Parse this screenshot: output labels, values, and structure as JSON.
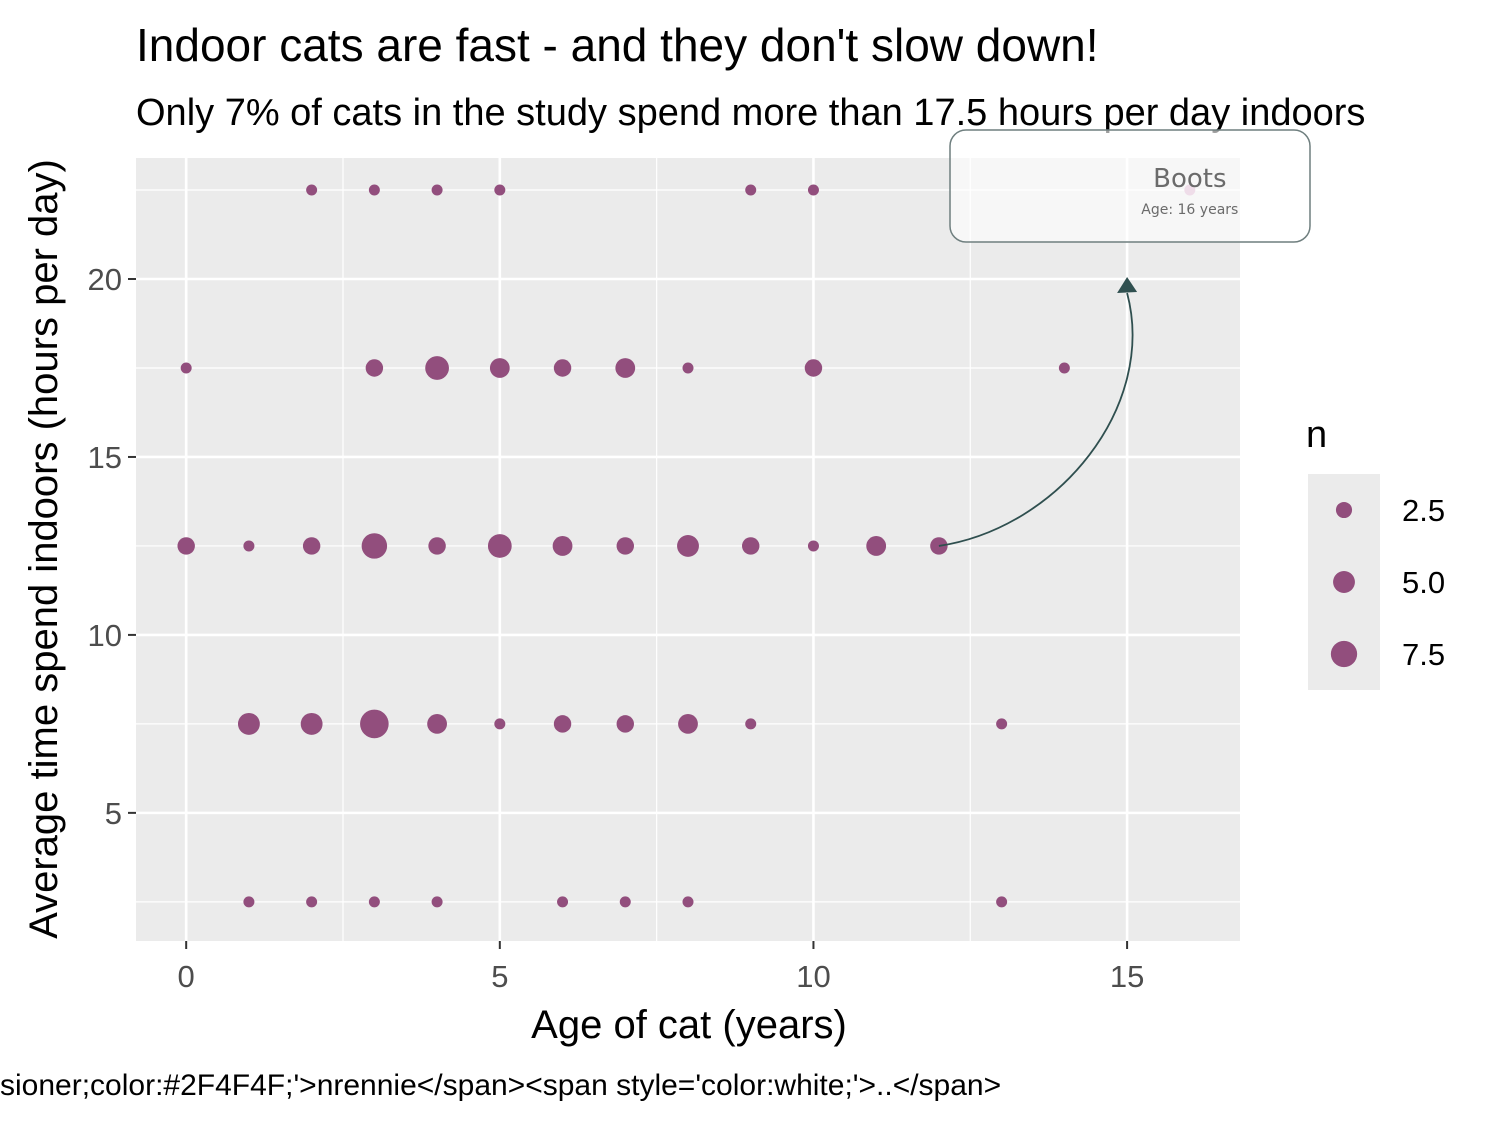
{
  "chart_data": {
    "type": "scatter",
    "title": "Indoor cats are fast - and they don't slow down!",
    "subtitle": "Only 7% of cats in the study spend more than 17.5 hours per day indoors",
    "xlabel": "Age of cat (years)",
    "ylabel": "Average time spend indoors (hours per day)",
    "xlim": [
      -0.8,
      16.8
    ],
    "ylim": [
      1.4,
      23.4
    ],
    "x_ticks": [
      0,
      5,
      10,
      15
    ],
    "y_ticks": [
      5,
      10,
      15,
      20
    ],
    "grid": true,
    "point_color": "#924e7d",
    "size_variable": "n",
    "legend": {
      "title": "n",
      "position": "right",
      "entries": [
        {
          "label": "2.5",
          "value": 2.5
        },
        {
          "label": "5.0",
          "value": 5.0
        },
        {
          "label": "7.5",
          "value": 7.5
        }
      ]
    },
    "points": [
      {
        "x": 2,
        "y": 22.5,
        "n": 1
      },
      {
        "x": 3,
        "y": 22.5,
        "n": 1
      },
      {
        "x": 4,
        "y": 22.5,
        "n": 1
      },
      {
        "x": 5,
        "y": 22.5,
        "n": 1
      },
      {
        "x": 9,
        "y": 22.5,
        "n": 1
      },
      {
        "x": 10,
        "y": 22.5,
        "n": 1
      },
      {
        "x": 0,
        "y": 17.5,
        "n": 1
      },
      {
        "x": 3,
        "y": 17.5,
        "n": 3
      },
      {
        "x": 4,
        "y": 17.5,
        "n": 6
      },
      {
        "x": 5,
        "y": 17.5,
        "n": 4
      },
      {
        "x": 6,
        "y": 17.5,
        "n": 3
      },
      {
        "x": 7,
        "y": 17.5,
        "n": 4
      },
      {
        "x": 8,
        "y": 17.5,
        "n": 1
      },
      {
        "x": 10,
        "y": 17.5,
        "n": 3
      },
      {
        "x": 14,
        "y": 17.5,
        "n": 1
      },
      {
        "x": 0,
        "y": 12.5,
        "n": 3
      },
      {
        "x": 1,
        "y": 12.5,
        "n": 1
      },
      {
        "x": 2,
        "y": 12.5,
        "n": 3
      },
      {
        "x": 3,
        "y": 12.5,
        "n": 7
      },
      {
        "x": 4,
        "y": 12.5,
        "n": 3
      },
      {
        "x": 5,
        "y": 12.5,
        "n": 6
      },
      {
        "x": 6,
        "y": 12.5,
        "n": 4
      },
      {
        "x": 7,
        "y": 12.5,
        "n": 3
      },
      {
        "x": 8,
        "y": 12.5,
        "n": 5
      },
      {
        "x": 9,
        "y": 12.5,
        "n": 3
      },
      {
        "x": 10,
        "y": 12.5,
        "n": 1
      },
      {
        "x": 11,
        "y": 12.5,
        "n": 4
      },
      {
        "x": 12,
        "y": 12.5,
        "n": 3
      },
      {
        "x": 1,
        "y": 7.5,
        "n": 5
      },
      {
        "x": 2,
        "y": 7.5,
        "n": 5
      },
      {
        "x": 3,
        "y": 7.5,
        "n": 9
      },
      {
        "x": 4,
        "y": 7.5,
        "n": 4
      },
      {
        "x": 5,
        "y": 7.5,
        "n": 1
      },
      {
        "x": 6,
        "y": 7.5,
        "n": 3
      },
      {
        "x": 7,
        "y": 7.5,
        "n": 3
      },
      {
        "x": 8,
        "y": 7.5,
        "n": 4
      },
      {
        "x": 9,
        "y": 7.5,
        "n": 1
      },
      {
        "x": 13,
        "y": 7.5,
        "n": 1
      },
      {
        "x": 1,
        "y": 2.5,
        "n": 1
      },
      {
        "x": 2,
        "y": 2.5,
        "n": 1
      },
      {
        "x": 3,
        "y": 2.5,
        "n": 1
      },
      {
        "x": 4,
        "y": 2.5,
        "n": 1
      },
      {
        "x": 6,
        "y": 2.5,
        "n": 1
      },
      {
        "x": 7,
        "y": 2.5,
        "n": 1
      },
      {
        "x": 8,
        "y": 2.5,
        "n": 1
      },
      {
        "x": 13,
        "y": 2.5,
        "n": 1
      }
    ],
    "highlight_point": {
      "x": 16,
      "y": 22.5,
      "color": "#d4a5c4"
    },
    "annotation": {
      "name": "Boots",
      "detail": "Age: 16 years",
      "arrow_from": {
        "x": 12,
        "y": 12.5
      },
      "arrow_to": {
        "x": 15,
        "y": 20
      },
      "arrow_color": "#2f4f4f"
    },
    "caption": "sioner;color:#2F4F4F;'>nrennie</span><span style='color:white;'>..</span>"
  }
}
